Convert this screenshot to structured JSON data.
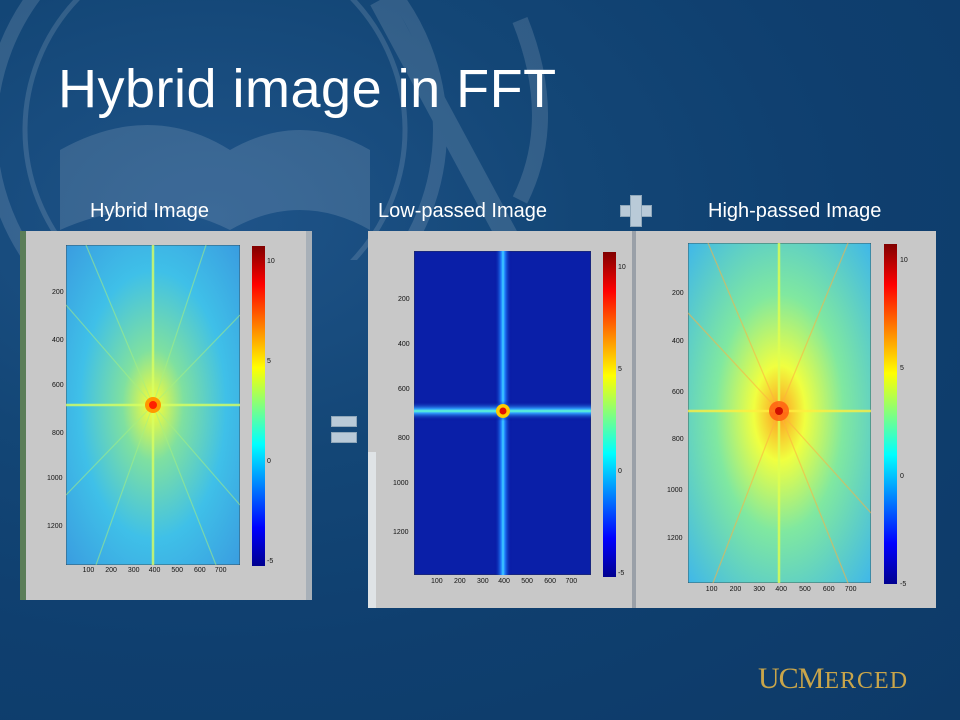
{
  "slide": {
    "title": "Hybrid image in FFT",
    "captions": {
      "hybrid": "Hybrid Image",
      "low": "Low-passed Image",
      "high": "High-passed Image"
    }
  },
  "plots": {
    "x_ticks": [
      "100",
      "200",
      "300",
      "400",
      "500",
      "600",
      "700"
    ],
    "y_ticks": [
      "200",
      "400",
      "600",
      "800",
      "1000",
      "1200"
    ],
    "colorbar_ticks": [
      "10",
      "5",
      "0",
      "-5"
    ]
  },
  "logo": {
    "uc": "UC",
    "m": "M",
    "rest": "ERCED"
  },
  "colors": {
    "background": "#134676",
    "logo": "#c9a54a",
    "operator": "#b9cad8"
  }
}
